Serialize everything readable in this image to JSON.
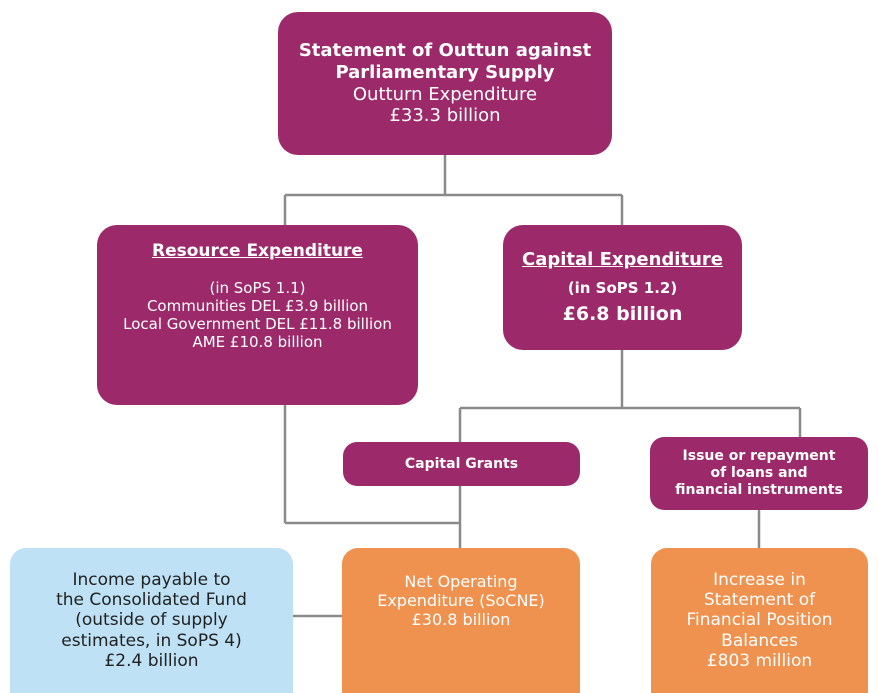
{
  "nodes": [
    {
      "lines": [
        "Statement of Outtun against",
        "Parliamentary Supply",
        "Outturn Expenditure",
        "£33.3 billion"
      ]
    },
    {
      "lines": [
        "Resource Expenditure",
        "(in SoPS 1.1)",
        "Communities DEL £3.9 billion",
        "Local Government DEL £11.8 billion",
        "AME £10.8 billion"
      ]
    },
    {
      "lines": [
        "Capital Expenditure",
        "(in SoPS 1.2)",
        "£6.8 billion"
      ]
    },
    {
      "lines": [
        "Capital Grants"
      ]
    },
    {
      "lines": [
        "Issue or repayment",
        "of loans and",
        "financial instruments"
      ]
    },
    {
      "lines": [
        "Income payable to",
        "the Consolidated Fund",
        "(outside of supply",
        "estimates, in SoPS 4)",
        "£2.4 billion"
      ]
    },
    {
      "lines": [
        "Net Operating",
        "Expenditure (SoCNE)",
        "£30.8 billion"
      ]
    },
    {
      "lines": [
        "Increase in",
        "Statement of",
        "Financial Position",
        "Balances",
        "£803 million"
      ]
    }
  ]
}
